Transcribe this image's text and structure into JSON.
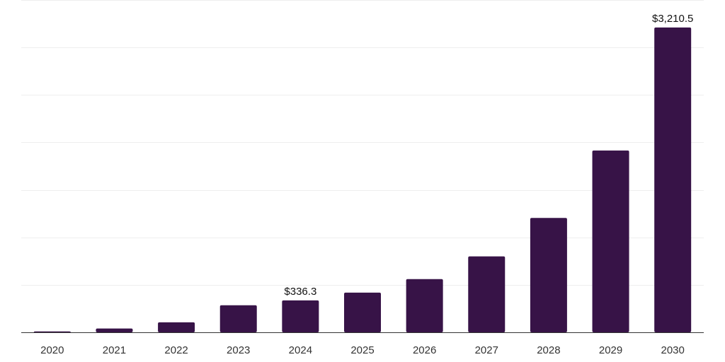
{
  "colors": {
    "bar": "#371347",
    "grid": "#eeeeee",
    "axis": "#333333"
  },
  "chart_data": {
    "type": "bar",
    "title": "",
    "xlabel": "",
    "ylabel": "",
    "categories": [
      "2020",
      "2021",
      "2022",
      "2023",
      "2024",
      "2025",
      "2026",
      "2027",
      "2028",
      "2029",
      "2030"
    ],
    "values": [
      9.5,
      40,
      105,
      285,
      336.3,
      418,
      560,
      800,
      1205,
      1915,
      3210.5
    ],
    "ylim": [
      0,
      3500
    ],
    "grid": true,
    "gridline_step": 500,
    "y_tick_labels_shown": false,
    "data_labels": [
      {
        "index": 4,
        "text": "$336.3"
      },
      {
        "index": 10,
        "text": "$3,210.5"
      }
    ]
  }
}
